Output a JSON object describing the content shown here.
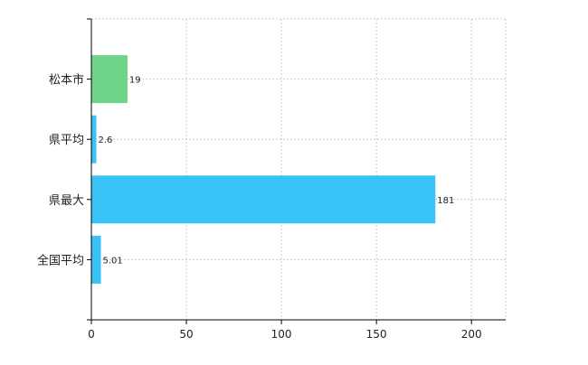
{
  "chart_data": {
    "type": "bar",
    "orientation": "horizontal",
    "categories": [
      "松本市",
      "県平均",
      "県最大",
      "全国平均"
    ],
    "values": [
      19,
      2.6,
      181,
      5.01
    ],
    "data_labels": [
      "19",
      "2.6",
      "181",
      "5.01"
    ],
    "bar_colors": [
      "#6fd388",
      "#39c2f5",
      "#39c2f5",
      "#39c2f5"
    ],
    "title": "",
    "xlabel": "",
    "ylabel": "",
    "xlim": [
      0,
      218
    ],
    "xticks": [
      0,
      50,
      100,
      150,
      200
    ],
    "grid": true
  }
}
